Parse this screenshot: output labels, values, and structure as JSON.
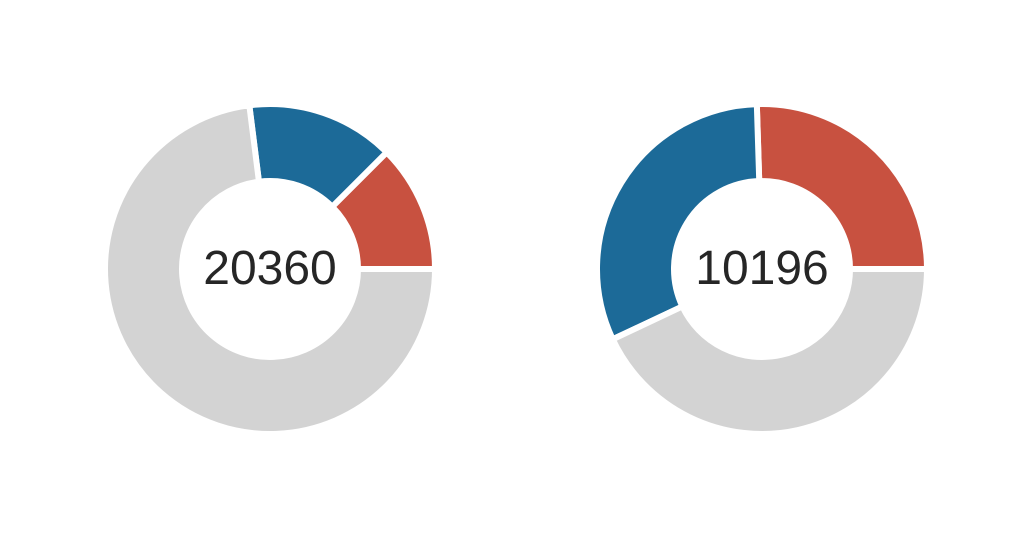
{
  "chart_data": [
    {
      "type": "pie",
      "donut": true,
      "center_label": "20360",
      "slices": [
        {
          "value": 0.125,
          "color": "#c85140"
        },
        {
          "value": 0.145,
          "color": "#1c6a98"
        },
        {
          "value": 0.73,
          "color": "#d3d3d3"
        }
      ]
    },
    {
      "type": "pie",
      "donut": true,
      "center_label": "10196",
      "slices": [
        {
          "value": 0.255,
          "color": "#c85140"
        },
        {
          "value": 0.315,
          "color": "#1c6a98"
        },
        {
          "value": 0.43,
          "color": "#d3d3d3"
        }
      ]
    }
  ]
}
